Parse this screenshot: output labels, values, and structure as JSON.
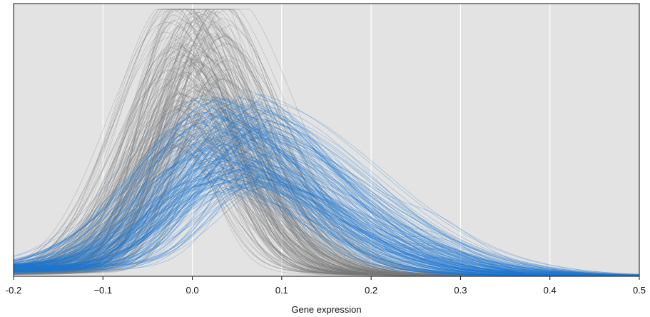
{
  "chart_data": {
    "type": "line",
    "title": "",
    "xlabel": "Gene expression",
    "ylabel": "",
    "xlim": [
      -0.2,
      0.5
    ],
    "x_ticks": [
      -0.2,
      -0.1,
      0.0,
      0.1,
      0.2,
      0.3,
      0.4,
      0.5
    ],
    "x_tick_labels": [
      "-0.2",
      "−0.1",
      "0.0",
      "0.1",
      "0.2",
      "0.3",
      "0.4",
      "0.5"
    ],
    "y_ticks_visible": false,
    "grid": {
      "vertical": true,
      "horizontal": false
    },
    "background_color": "#e3e3e3",
    "legend": "none",
    "series_groups": [
      {
        "color": "#7a7a7a",
        "line_count": 220,
        "shape": "density curves",
        "typical_peak_x": 0.0,
        "peak_x_range": [
          -0.03,
          0.04
        ],
        "typical_peak_height": 0.72,
        "peak_height_range": [
          0.3,
          1.0
        ]
      },
      {
        "color": "#1f78d1",
        "line_count": 200,
        "shape": "right-skewed density curves",
        "typical_peak_x": 0.04,
        "peak_x_range": [
          0.0,
          0.09
        ],
        "typical_peak_height": 0.45,
        "peak_height_range": [
          0.2,
          0.62
        ],
        "secondary_bump_x": 0.28
      }
    ]
  }
}
